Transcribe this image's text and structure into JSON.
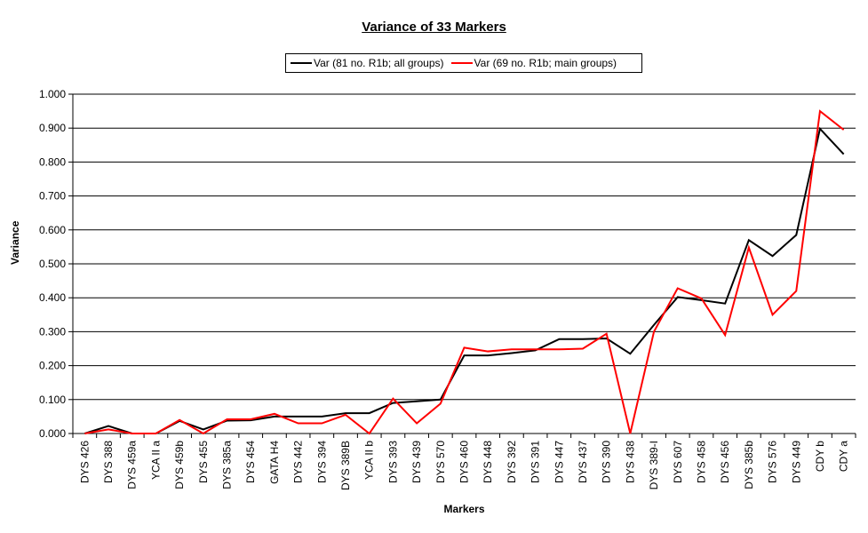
{
  "chart_data": {
    "type": "line",
    "title": "Variance of 33 Markers",
    "xlabel": "Markers",
    "ylabel": "Variance",
    "ylim": [
      0,
      1.0
    ],
    "yticks": [
      "0.000",
      "0.100",
      "0.200",
      "0.300",
      "0.400",
      "0.500",
      "0.600",
      "0.700",
      "0.800",
      "0.900",
      "1.000"
    ],
    "grid": true,
    "legend_position": "top",
    "categories": [
      "DYS 426",
      "DYS 388",
      "DYS 459a",
      "YCA II a",
      "DYS 459b",
      "DYS 455",
      "DYS 385a",
      "DYS 454",
      "GATA H4",
      "DYS 442",
      "DYS 394",
      "DYS 389B",
      "YCA II b",
      "DYS 393",
      "DYS 439",
      "DYS 570",
      "DYS 460",
      "DYS 448",
      "DYS 392",
      "DYS 391",
      "DYS 447",
      "DYS 437",
      "DYS 390",
      "DYS 438",
      "DYS 389-I",
      "DYS 607",
      "DYS 458",
      "DYS 456",
      "DYS 385b",
      "DYS 576",
      "DYS 449",
      "CDY b",
      "CDY a"
    ],
    "series": [
      {
        "name": "Var (81 no. R1b; all groups)",
        "color": "#000000",
        "values": [
          0.0,
          0.022,
          0.0,
          0.0,
          0.037,
          0.012,
          0.038,
          0.039,
          0.05,
          0.05,
          0.05,
          0.06,
          0.06,
          0.09,
          0.095,
          0.1,
          0.23,
          0.23,
          0.237,
          0.245,
          0.278,
          0.278,
          0.28,
          0.235,
          0.32,
          0.402,
          0.393,
          0.383,
          0.57,
          0.523,
          0.585,
          0.898,
          0.823
        ]
      },
      {
        "name": "Var (69 no. R1b; main groups)",
        "color": "#ff0000",
        "values": [
          0.0,
          0.012,
          0.0,
          0.0,
          0.04,
          0.0,
          0.042,
          0.042,
          0.058,
          0.03,
          0.03,
          0.055,
          0.0,
          0.103,
          0.03,
          0.088,
          0.253,
          0.242,
          0.248,
          0.248,
          0.248,
          0.25,
          0.294,
          0.0,
          0.3,
          0.428,
          0.398,
          0.29,
          0.548,
          0.35,
          0.42,
          0.95,
          0.895
        ]
      }
    ]
  }
}
